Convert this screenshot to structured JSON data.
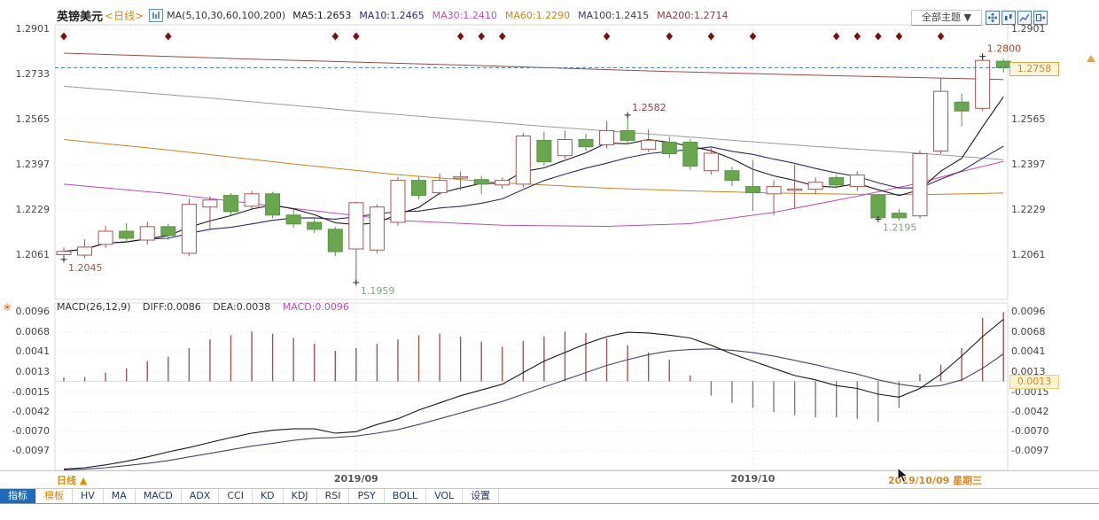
{
  "header": {
    "symbol": "英镑美元",
    "period": "<日线>",
    "ma_settings": "MA(5,10,30,60,100,200)",
    "ma_legend": [
      {
        "label": "MA5:1.2653",
        "color": "#1a1a1a"
      },
      {
        "label": "MA10:1.2465",
        "color": "#2b2b6e"
      },
      {
        "label": "MA30:1.2410",
        "color": "#bb4fbb"
      },
      {
        "label": "MA60:1.2290",
        "color": "#c8861e"
      },
      {
        "label": "MA100:1.2415",
        "color": "#3a3a5c"
      },
      {
        "label": "MA200:1.2714",
        "color": "#8a3b3b"
      }
    ],
    "theme_dropdown": "全部主题 ▼",
    "window_icons": [
      "pan-icon",
      "candle-chart-icon",
      "bar-chart-icon",
      "export-icon"
    ]
  },
  "main_chart": {
    "y_axis_labels": [
      "1.2901",
      "1.2733",
      "1.2565",
      "1.2397",
      "1.2229",
      "1.2061"
    ],
    "current_price_label": "1.2758"
  },
  "macd_panel": {
    "indicator_label": "MACD(26,12,9)",
    "diff_label": "DIFF:0.0086",
    "dea_label": "DEA:0.0038",
    "macd_label": "MACD:0.0096",
    "y_axis_labels": [
      "0.0096",
      "0.0068",
      "0.0041",
      "0.0013",
      "-0.0015",
      "-0.0042",
      "-0.0070",
      "-0.0097"
    ],
    "current_value_label": "0.0013"
  },
  "footer": {
    "period_label": "日线 ▲",
    "crosshair_date": "2019/10/09 星期三"
  },
  "toolbar": {
    "tabs": [
      {
        "label": "指标",
        "active": true
      },
      {
        "label": "模板",
        "highlight": true
      },
      {
        "label": "HV"
      },
      {
        "label": "MA"
      },
      {
        "label": "MACD"
      },
      {
        "label": "ADX"
      },
      {
        "label": "CCI"
      },
      {
        "label": "KD"
      },
      {
        "label": "KDJ"
      },
      {
        "label": "RSI"
      },
      {
        "label": "PSY"
      },
      {
        "label": "BOLL"
      },
      {
        "label": "VOL"
      },
      {
        "label": "设置"
      }
    ]
  },
  "chart_data": {
    "type": "candlestick",
    "symbol": "英镑美元 (GBP/USD)",
    "period": "daily",
    "title": "英镑美元<日线>",
    "y_axis": [
      1.2901,
      1.2733,
      1.2565,
      1.2397,
      1.2229,
      1.2061
    ],
    "current_price": 1.2758,
    "candles_ohlc": [
      [
        1.2063,
        1.209,
        1.2045,
        1.2075
      ],
      [
        1.2061,
        1.212,
        1.205,
        1.2091
      ],
      [
        1.2101,
        1.217,
        1.2088,
        1.215
      ],
      [
        1.215,
        1.218,
        1.211,
        1.2124
      ],
      [
        1.2117,
        1.2185,
        1.21,
        1.2167
      ],
      [
        1.2167,
        1.2178,
        1.2118,
        1.2134
      ],
      [
        1.2068,
        1.2273,
        1.2058,
        1.225
      ],
      [
        1.224,
        1.228,
        1.216,
        1.2266
      ],
      [
        1.2283,
        1.2292,
        1.2208,
        1.2223
      ],
      [
        1.2243,
        1.23,
        1.2233,
        1.2289
      ],
      [
        1.2289,
        1.2296,
        1.2198,
        1.221
      ],
      [
        1.221,
        1.2232,
        1.2163,
        1.2177
      ],
      [
        1.2183,
        1.22,
        1.2143,
        1.2157
      ],
      [
        1.2157,
        1.2166,
        1.2058,
        1.2074
      ],
      [
        1.2084,
        1.226,
        1.1959,
        1.2256
      ],
      [
        1.208,
        1.225,
        1.2068,
        1.224
      ],
      [
        1.2183,
        1.2352,
        1.217,
        1.2339
      ],
      [
        1.2339,
        1.2352,
        1.2268,
        1.2283
      ],
      [
        1.2293,
        1.2365,
        1.2283,
        1.2339
      ],
      [
        1.235,
        1.2372,
        1.2302,
        1.2352
      ],
      [
        1.2342,
        1.2356,
        1.2288,
        1.2325
      ],
      [
        1.2322,
        1.235,
        1.2308,
        1.2339
      ],
      [
        1.2325,
        1.2515,
        1.2314,
        1.2504
      ],
      [
        1.2488,
        1.252,
        1.2393,
        1.2408
      ],
      [
        1.2431,
        1.2525,
        1.2419,
        1.2491
      ],
      [
        1.2491,
        1.2512,
        1.2448,
        1.2464
      ],
      [
        1.2471,
        1.256,
        1.2458,
        1.2524
      ],
      [
        1.2524,
        1.2582,
        1.2473,
        1.2488
      ],
      [
        1.2455,
        1.253,
        1.2444,
        1.2488
      ],
      [
        1.2481,
        1.2502,
        1.2423,
        1.2438
      ],
      [
        1.2481,
        1.2494,
        1.2378,
        1.2392
      ],
      [
        1.2375,
        1.246,
        1.236,
        1.244
      ],
      [
        1.2375,
        1.239,
        1.2318,
        1.2339
      ],
      [
        1.2316,
        1.2415,
        1.2226,
        1.2293
      ],
      [
        1.2289,
        1.234,
        1.221,
        1.2316
      ],
      [
        1.2306,
        1.2398,
        1.2233,
        1.2307
      ],
      [
        1.2306,
        1.235,
        1.2288,
        1.2332
      ],
      [
        1.2349,
        1.236,
        1.2308,
        1.2322
      ],
      [
        1.2316,
        1.2372,
        1.23,
        1.2359
      ],
      [
        1.2283,
        1.229,
        1.2195,
        1.22
      ],
      [
        1.2217,
        1.2232,
        1.219,
        1.22
      ],
      [
        1.2207,
        1.245,
        1.2198,
        1.2438
      ],
      [
        1.2448,
        1.2719,
        1.2438,
        1.267
      ],
      [
        1.263,
        1.2662,
        1.254,
        1.2597
      ],
      [
        1.2607,
        1.28,
        1.2598,
        1.2785
      ],
      [
        1.2782,
        1.2792,
        1.274,
        1.2758
      ]
    ],
    "diamond_marks": [
      1,
      6,
      14,
      15,
      20,
      21,
      22,
      27,
      30,
      32,
      34,
      38,
      39,
      40,
      41,
      43
    ],
    "price_annotations": [
      {
        "candle": 1,
        "text": "1.2045",
        "position": "below",
        "color": "#a0584a"
      },
      {
        "candle": 15,
        "text": "1.1959",
        "position": "below",
        "color": "#85a385"
      },
      {
        "candle": 28,
        "text": "1.2582",
        "position": "above",
        "color": "#a03c3c"
      },
      {
        "candle": 40,
        "text": "1.2195",
        "position": "below",
        "color": "#85a385"
      },
      {
        "candle": 45,
        "text": "1.2800",
        "position": "above",
        "color": "#c23b22"
      }
    ],
    "month_gridlines": [
      {
        "candle": 15,
        "label": "2019/09"
      },
      {
        "candle": 34,
        "label": "2019/10"
      }
    ],
    "ma_overlays": {
      "ma5": {
        "color": "#1a1a1a",
        "computed_period": 5
      },
      "ma10": {
        "color": "#2b2b6e",
        "computed_period": 10
      },
      "ma30": {
        "color": "#bb4fbb",
        "points": [
          [
            1,
            1.2325
          ],
          [
            6,
            1.229
          ],
          [
            12,
            1.2235
          ],
          [
            17,
            1.219
          ],
          [
            22,
            1.2172
          ],
          [
            27,
            1.2168
          ],
          [
            31,
            1.2178
          ],
          [
            35,
            1.222
          ],
          [
            39,
            1.228
          ],
          [
            42,
            1.233
          ],
          [
            44,
            1.2372
          ],
          [
            46,
            1.241
          ]
        ]
      },
      "ma60": {
        "color": "#c8861e",
        "points": [
          [
            1,
            1.2491
          ],
          [
            6,
            1.2452
          ],
          [
            12,
            1.24
          ],
          [
            17,
            1.236
          ],
          [
            22,
            1.233
          ],
          [
            27,
            1.231
          ],
          [
            31,
            1.23
          ],
          [
            35,
            1.2292
          ],
          [
            39,
            1.2287
          ],
          [
            42,
            1.2286
          ],
          [
            46,
            1.2292
          ]
        ]
      },
      "ma100": {
        "color": "#9a9a9a",
        "points": [
          [
            1,
            1.2689
          ],
          [
            8,
            1.2645
          ],
          [
            16,
            1.259
          ],
          [
            24,
            1.254
          ],
          [
            31,
            1.25
          ],
          [
            37,
            1.2465
          ],
          [
            42,
            1.244
          ],
          [
            46,
            1.2416
          ]
        ]
      },
      "ma200": {
        "color": "#9c4a44",
        "points": [
          [
            1,
            1.2812
          ],
          [
            10,
            1.279
          ],
          [
            20,
            1.2768
          ],
          [
            30,
            1.2744
          ],
          [
            38,
            1.2728
          ],
          [
            46,
            1.2714
          ]
        ]
      }
    },
    "macd": {
      "params": [
        26,
        12,
        9
      ],
      "diff": 0.0086,
      "dea": 0.0038,
      "macd": 0.0096,
      "y_axis": [
        0.0096,
        0.0068,
        0.0041,
        0.0013,
        -0.0015,
        -0.0042,
        -0.007,
        -0.0097
      ],
      "histogram": [
        0.0005,
        0.0006,
        0.0012,
        0.0018,
        0.0028,
        0.0034,
        0.0046,
        0.0058,
        0.0064,
        0.0069,
        0.0066,
        0.006,
        0.0052,
        0.0042,
        0.0046,
        0.0052,
        0.0058,
        0.0064,
        0.0066,
        0.0062,
        0.0055,
        0.0048,
        0.0056,
        0.0062,
        0.0069,
        0.0067,
        0.006,
        0.005,
        0.004,
        0.003,
        0.0008,
        -0.002,
        -0.003,
        -0.0037,
        -0.0043,
        -0.0047,
        -0.005,
        -0.005,
        -0.0052,
        -0.0056,
        -0.0037,
        0.001,
        0.0023,
        0.0046,
        0.0088,
        0.0096
      ],
      "diff_series": [
        -0.0122,
        -0.012,
        -0.0116,
        -0.0111,
        -0.0105,
        -0.0098,
        -0.0092,
        -0.0085,
        -0.0078,
        -0.0072,
        -0.0068,
        -0.0066,
        -0.0066,
        -0.0072,
        -0.007,
        -0.006,
        -0.0052,
        -0.004,
        -0.003,
        -0.002,
        -0.0012,
        -0.0004,
        0.0012,
        0.0028,
        0.004,
        0.0052,
        0.0062,
        0.0068,
        0.0067,
        0.0064,
        0.006,
        0.005,
        0.0038,
        0.0028,
        0.0018,
        0.0008,
        0.0002,
        -0.0006,
        -0.001,
        -0.0018,
        -0.0022,
        -0.001,
        0.001,
        0.0035,
        0.0062,
        0.0086
      ],
      "dea_series": [
        -0.0123,
        -0.0122,
        -0.012,
        -0.0117,
        -0.0114,
        -0.011,
        -0.0105,
        -0.01,
        -0.0095,
        -0.009,
        -0.0086,
        -0.0082,
        -0.0079,
        -0.0078,
        -0.0076,
        -0.0072,
        -0.0067,
        -0.006,
        -0.0052,
        -0.0044,
        -0.0036,
        -0.0028,
        -0.0018,
        -0.0008,
        0.0002,
        0.0012,
        0.0022,
        0.003,
        0.0037,
        0.0042,
        0.0044,
        0.0045,
        0.0043,
        0.004,
        0.0035,
        0.0029,
        0.0023,
        0.0016,
        0.001,
        0.0002,
        -0.0004,
        -0.0008,
        -0.0006,
        0.0002,
        0.0018,
        0.0038
      ]
    },
    "colors": {
      "bull_fill": "#ffffff",
      "bull_border": "#a85454",
      "bear_fill": "#69a74f",
      "bear_border": "#5a9344",
      "diamond": "#7a1212",
      "current_price_line": "#3a7fae",
      "hist_pos": "#a05555",
      "hist_neg": "#8a7589",
      "diff_line": "#1a1a1a",
      "dea_line": "#44446a"
    }
  }
}
